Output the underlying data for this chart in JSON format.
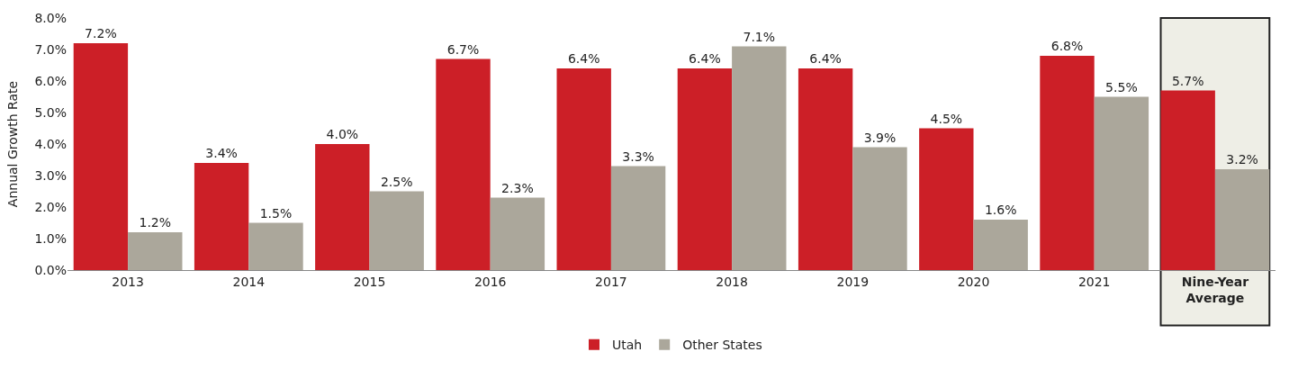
{
  "chart_data": {
    "type": "bar",
    "ylabel": "Annual Growth Rate",
    "categories": [
      "2013",
      "2014",
      "2015",
      "2016",
      "2017",
      "2018",
      "2019",
      "2020",
      "2021",
      "Nine-Year Average"
    ],
    "series": [
      {
        "name": "Utah",
        "color": "#cc1f27",
        "values": [
          7.2,
          3.4,
          4.0,
          6.7,
          6.4,
          6.4,
          6.4,
          4.5,
          6.8,
          5.7
        ],
        "value_labels": [
          "7.2%",
          "3.4%",
          "4.0%",
          "6.7%",
          "6.4%",
          "6.4%",
          "6.4%",
          "4.5%",
          "6.8%",
          "5.7%"
        ]
      },
      {
        "name": "Other States",
        "color": "#aba79b",
        "values": [
          1.2,
          1.5,
          2.5,
          2.3,
          3.3,
          7.1,
          3.9,
          1.6,
          5.5,
          3.2
        ],
        "value_labels": [
          "1.2%",
          "1.5%",
          "2.5%",
          "2.3%",
          "3.3%",
          "7.1%",
          "3.9%",
          "1.6%",
          "5.5%",
          "3.2%"
        ]
      }
    ],
    "ylim": [
      0,
      8
    ],
    "yticks": [
      {
        "value": 0,
        "label": "0.0%"
      },
      {
        "value": 1,
        "label": "1.0%"
      },
      {
        "value": 2,
        "label": "2.0%"
      },
      {
        "value": 3,
        "label": "3.0%"
      },
      {
        "value": 4,
        "label": "4.0%"
      },
      {
        "value": 5,
        "label": "5.0%"
      },
      {
        "value": 6,
        "label": "6.0%"
      },
      {
        "value": 7,
        "label": "7.0%"
      },
      {
        "value": 8,
        "label": "8.0%"
      }
    ],
    "bands": [
      {
        "axis": "x",
        "from": "Nine-Year Average",
        "to": "Nine-Year Average",
        "color": "#eeeee6"
      }
    ],
    "grid": false,
    "legend": "bottom"
  }
}
